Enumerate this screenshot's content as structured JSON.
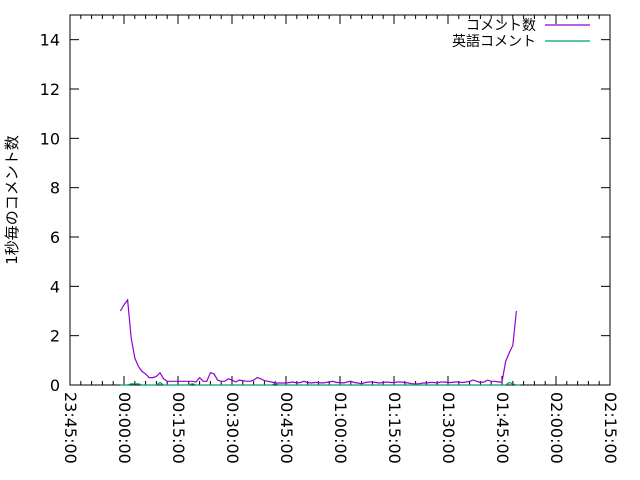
{
  "chart_data": {
    "type": "line",
    "title": "",
    "xlabel": "",
    "ylabel": "1秒毎のコメント数",
    "ylim": [
      0,
      15
    ],
    "yticks": [
      "0",
      "2",
      "4",
      "6",
      "8",
      "10",
      "12",
      "14"
    ],
    "xlim": [
      "23:45:00",
      "02:15:00"
    ],
    "xticks": [
      "23:45:00",
      "00:00:00",
      "00:15:00",
      "00:30:00",
      "00:45:00",
      "01:00:00",
      "01:15:00",
      "01:30:00",
      "01:45:00",
      "02:00:00",
      "02:15:00"
    ],
    "x_minutes_from_midnight_start": -1,
    "x_step_minutes": 1,
    "legend_position": "top-right",
    "grid": false,
    "series": [
      {
        "name": "コメント数",
        "color": "#9400d3",
        "values": [
          3.0,
          3.25,
          3.45,
          1.9,
          1.1,
          0.75,
          0.55,
          0.45,
          0.3,
          0.3,
          0.35,
          0.5,
          0.25,
          0.15,
          0.15,
          0.15,
          0.15,
          0.15,
          0.15,
          0.15,
          0.15,
          0.12,
          0.3,
          0.15,
          0.15,
          0.5,
          0.45,
          0.2,
          0.15,
          0.15,
          0.25,
          0.2,
          0.12,
          0.2,
          0.18,
          0.15,
          0.15,
          0.2,
          0.3,
          0.25,
          0.18,
          0.15,
          0.12,
          0.08,
          0.08,
          0.08,
          0.08,
          0.1,
          0.12,
          0.08,
          0.1,
          0.15,
          0.1,
          0.08,
          0.1,
          0.1,
          0.08,
          0.1,
          0.12,
          0.15,
          0.1,
          0.1,
          0.08,
          0.12,
          0.15,
          0.1,
          0.08,
          0.05,
          0.1,
          0.12,
          0.12,
          0.1,
          0.08,
          0.1,
          0.12,
          0.1,
          0.1,
          0.12,
          0.12,
          0.1,
          0.08,
          0.05,
          0.05,
          0.05,
          0.08,
          0.08,
          0.1,
          0.1,
          0.08,
          0.12,
          0.12,
          0.1,
          0.1,
          0.12,
          0.12,
          0.1,
          0.12,
          0.15,
          0.2,
          0.15,
          0.1,
          0.12,
          0.2,
          0.15,
          0.15,
          0.12,
          0.12,
          0.95,
          1.3,
          1.6,
          3.0
        ],
        "values_note_omit": null
      },
      {
        "name": "英語コメント",
        "color": "#009e73",
        "values": [
          0,
          0,
          0,
          0.05,
          0.05,
          0.05,
          0,
          0,
          0,
          0,
          0,
          0.1,
          0,
          0,
          0,
          0,
          0,
          0,
          0,
          0,
          0.05,
          0,
          0,
          0,
          0,
          0,
          0,
          0,
          0,
          0,
          0,
          0,
          0,
          0,
          0,
          0,
          0,
          0,
          0,
          0,
          0,
          0,
          0,
          0.05,
          0,
          0,
          0,
          0,
          0,
          0,
          0,
          0,
          0,
          0,
          0,
          0,
          0,
          0,
          0,
          0,
          0,
          0,
          0,
          0,
          0,
          0,
          0,
          0,
          0,
          0,
          0,
          0,
          0,
          0,
          0,
          0,
          0,
          0,
          0,
          0,
          0,
          0,
          0,
          0,
          0,
          0,
          0,
          0,
          0,
          0,
          0,
          0,
          0,
          0,
          0,
          0,
          0,
          0,
          0,
          0,
          0,
          0,
          0,
          0,
          0,
          0,
          0,
          0,
          0.1,
          0.05,
          0,
          0
        ]
      }
    ]
  }
}
